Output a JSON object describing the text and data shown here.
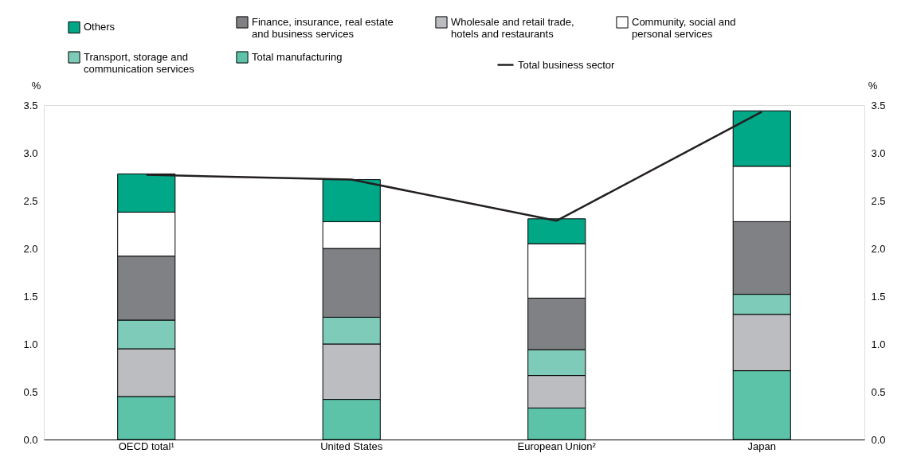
{
  "chart_data": {
    "type": "bar",
    "stacked": true,
    "categories": [
      "OECD total¹",
      "United States",
      "European Union²",
      "Japan"
    ],
    "series": [
      {
        "name": "Total manufacturing",
        "color": "#5cc3a8",
        "values": [
          0.45,
          0.42,
          0.33,
          0.72
        ]
      },
      {
        "name": "Wholesale and retail trade, hotels and restaurants",
        "color": "#bcbdc0",
        "values": [
          0.5,
          0.58,
          0.34,
          0.59
        ]
      },
      {
        "name": "Transport, storage and communication services",
        "color": "#7dcbb8",
        "values": [
          0.3,
          0.28,
          0.27,
          0.21
        ]
      },
      {
        "name": "Finance, insurance, real estate and business services",
        "color": "#808184",
        "values": [
          0.67,
          0.72,
          0.54,
          0.76
        ]
      },
      {
        "name": "Community, social and personal services",
        "color": "#ffffff",
        "values": [
          0.46,
          0.28,
          0.57,
          0.58
        ]
      },
      {
        "name": "Others",
        "color": "#00a887",
        "values": [
          0.4,
          0.44,
          0.26,
          0.58
        ]
      },
      {
        "name": "Total business sector",
        "type": "line",
        "axis": "y2",
        "color": "#231f20",
        "values": [
          2.77,
          2.72,
          2.29,
          3.43
        ]
      }
    ],
    "ylim": [
      0,
      3.5
    ],
    "yticks": [
      {
        "value": 0,
        "label": "0.0"
      },
      {
        "value": 0.5,
        "label": "0.5"
      },
      {
        "value": 1,
        "label": "1.0"
      },
      {
        "value": 1.5,
        "label": "1.5"
      },
      {
        "value": 2,
        "label": "2.0"
      },
      {
        "value": 2.5,
        "label": "2.5"
      },
      {
        "value": 3,
        "label": "3.0"
      },
      {
        "value": 3.5,
        "label": "3.5"
      }
    ],
    "y2lim": [
      0,
      3.5
    ],
    "y2ticks": [
      {
        "value": 0,
        "label": "0.0"
      },
      {
        "value": 0.5,
        "label": "0.5"
      },
      {
        "value": 1,
        "label": "1.0"
      },
      {
        "value": 1.5,
        "label": "1.5"
      },
      {
        "value": 2,
        "label": "2.0"
      },
      {
        "value": 2.5,
        "label": "2.5"
      },
      {
        "value": 3,
        "label": "3.0"
      },
      {
        "value": 3.5,
        "label": "3.5"
      }
    ],
    "ylabel": "%",
    "y2label": "%",
    "legend": "top",
    "grid": false
  }
}
